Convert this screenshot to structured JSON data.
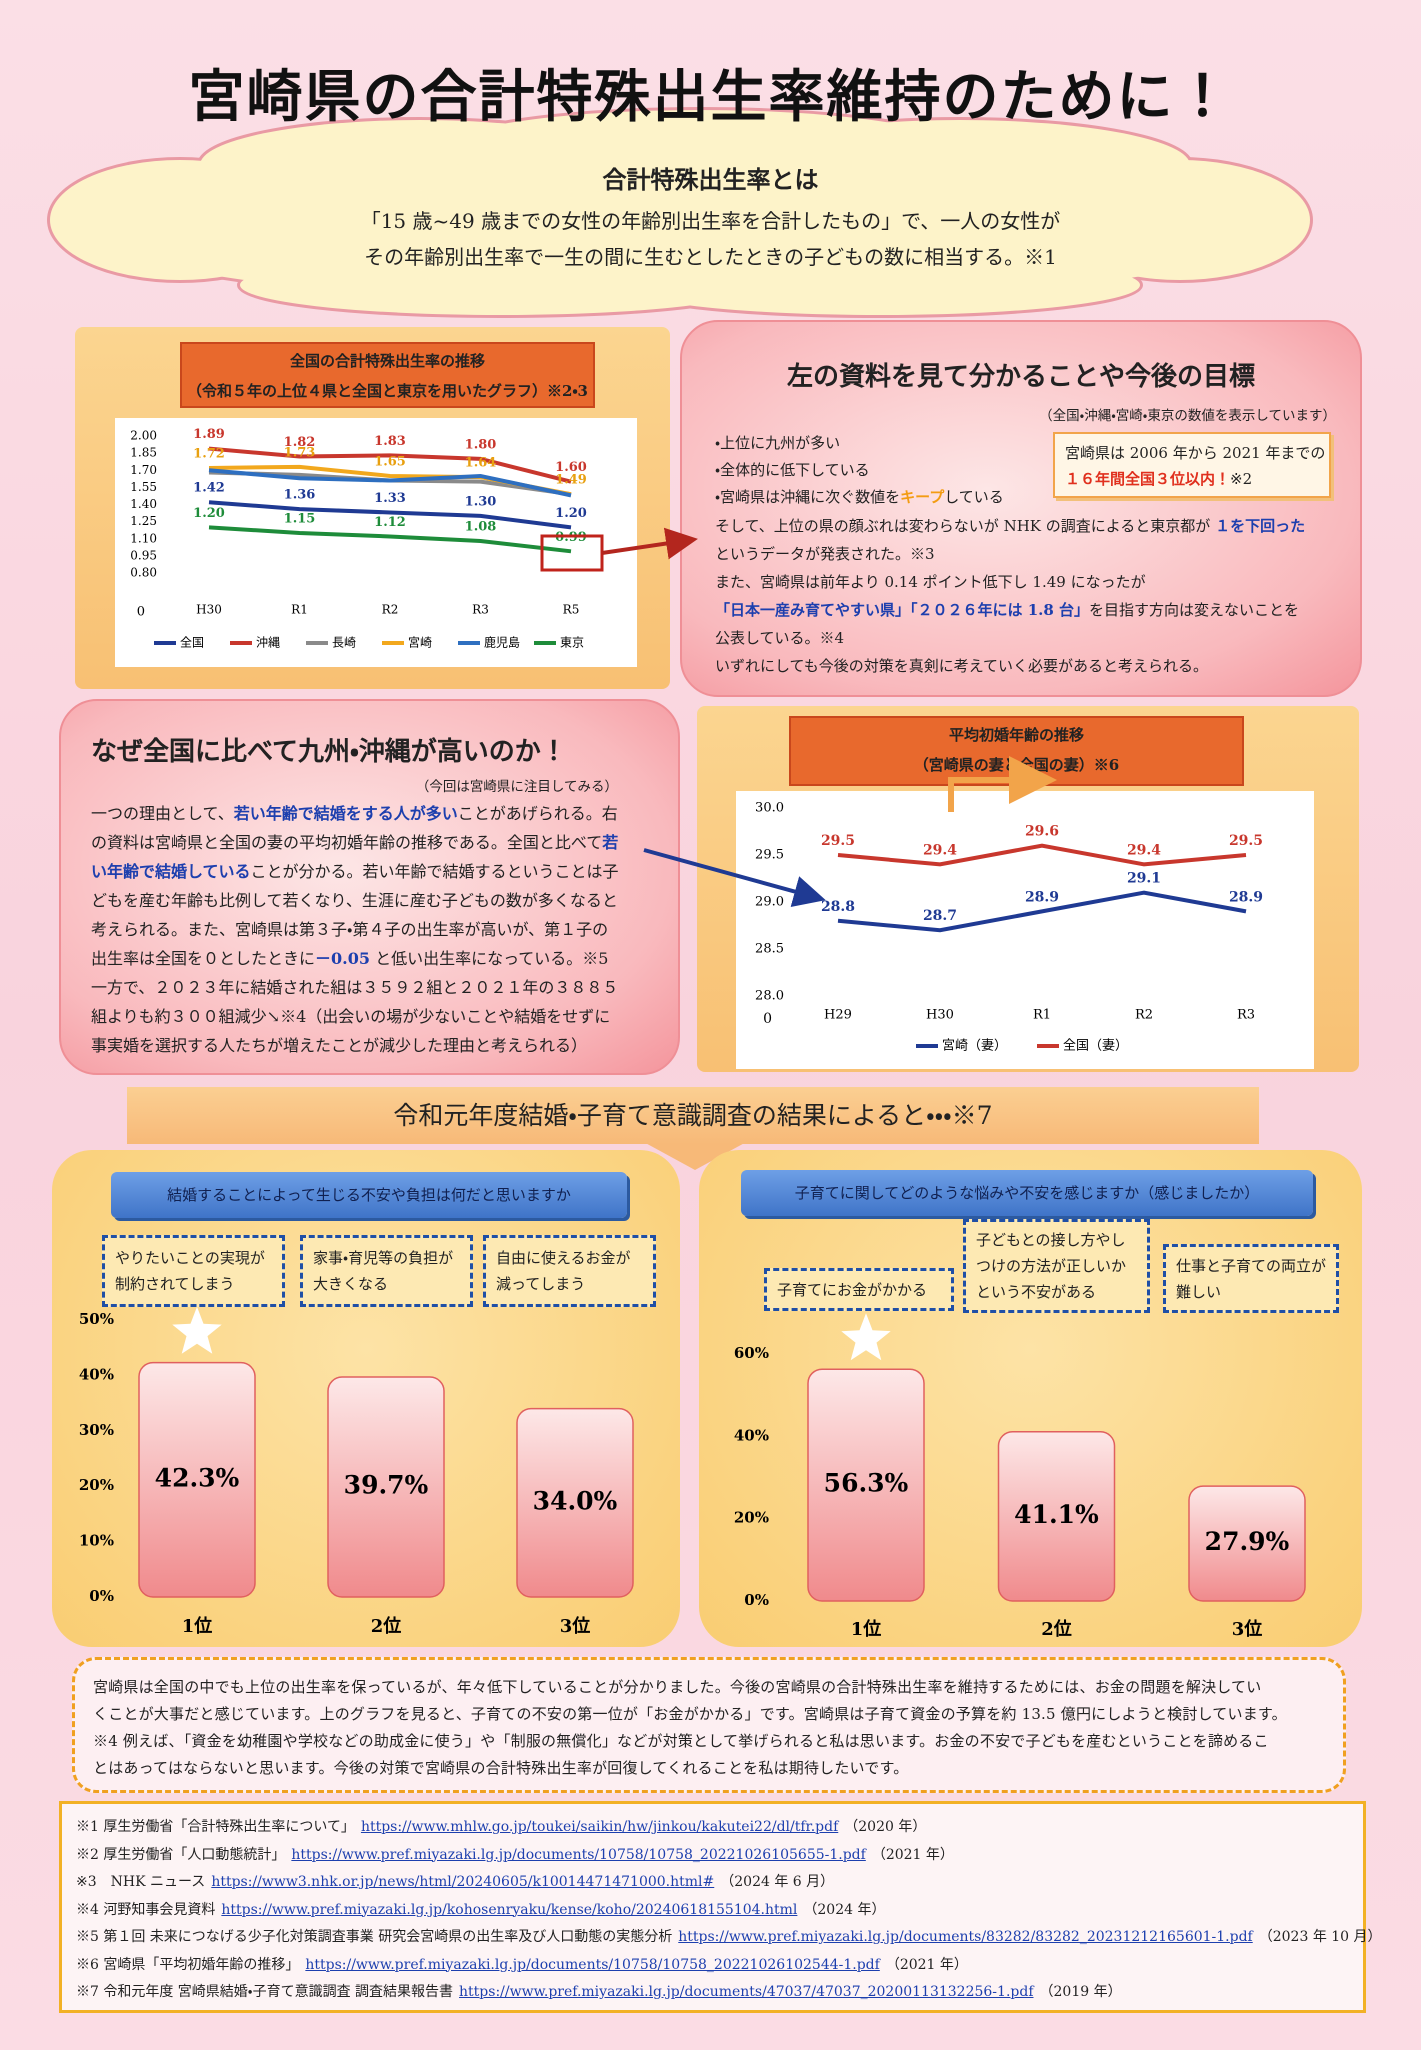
{
  "title": "宮崎県の合計特殊出生率維持のために！",
  "definition": {
    "heading": "合計特殊出生率とは",
    "lines": [
      "「15 歳~49 歳までの女性の年齢別出生率を合計したもの」で、一人の女性が",
      "その年齢別出生率で一生の間に生むとしたときの子どもの数に相当する。※1"
    ]
  },
  "findings": {
    "heading": "左の資料を見て分かることや今後の目標",
    "note": "（全国・沖縄・宮崎・東京の数値を表示しています）",
    "bullets": [
      [
        "・上位に九州が多い"
      ],
      [
        "・全体的に低下している"
      ],
      [
        "・宮崎県は沖縄に次ぐ数値を",
        {
          "text": "キープ",
          "color": "#f39c12"
        },
        "している"
      ]
    ],
    "callout": [
      [
        "宮崎県は 2006 年から 2021 年までの"
      ],
      [
        {
          "text": "１６年間全国３位以内！",
          "color": "#e0301e"
        },
        "※2"
      ]
    ],
    "lines": [
      [
        "そして、上位の県の顔ぶれは変わらないが NHK の調査によると東京都が ",
        {
          "text": "１を下回った",
          "color": "#1d3fae"
        }
      ],
      [
        "というデータが発表された。※3"
      ],
      [
        "また、宮崎県は前年より 0.14 ポイント低下し 1.49 になったが"
      ],
      [
        {
          "text": "「日本一産み育てやすい県」「２０２６年には 1.8 台」",
          "color": "#1d3fae"
        },
        "を目指す方向は変えないことを"
      ],
      [
        "公表している。※4"
      ],
      [
        "いずれにしても今後の対策を真剣に考えていく必要があると考えられる。"
      ]
    ]
  },
  "reason": {
    "heading": "なぜ全国に比べて九州・沖縄が高いのか！",
    "note": "（今回は宮崎県に注目してみる）",
    "lines": [
      [
        "一つの理由として、",
        {
          "text": "若い年齢で結婚をする人が多い",
          "color": "#1d3fae"
        },
        "ことがあげられる。右"
      ],
      [
        "の資料は宮崎県と全国の妻の平均初婚年齢の推移である。全国と比べて",
        {
          "text": "若",
          "color": "#1d3fae"
        }
      ],
      [
        {
          "text": "い年齢で結婚している",
          "color": "#1d3fae"
        },
        "ことが分かる。若い年齢で結婚するということは子"
      ],
      [
        "どもを産む年齢も比例して若くなり、生涯に産む子どもの数が多くなると"
      ],
      [
        "考えられる。また、宮崎県は第３子・第４子の出生率が高いが、第１子の"
      ],
      [
        "出生率は全国を０としたときに",
        {
          "text": "－0.05",
          "color": "#1d3fae"
        },
        " と低い出生率になっている。※5"
      ],
      [
        "一方で、２０２３年に結婚された組は３５９２組と２０２１年の３８８５"
      ],
      [
        "組よりも約３００組減少↘※4（出会いの場が少ないことや結婚をせずに"
      ],
      [
        "事実婚を選択する人たちが増えたことが減少した理由と考えられる）"
      ]
    ]
  },
  "survey_heading": "令和元年度結婚・子育て意識調査の結果によると・・・※7",
  "conclusion": [
    "宮崎県は全国の中でも上位の出生率を保っているが、年々低下していることが分かりました。今後の宮崎県の合計特殊出生率を維持するためには、お金の問題を解決してい",
    "くことが大事だと感じています。上のグラフを見ると、子育ての不安の第一位が「お金がかかる」です。宮崎県は子育て資金の予算を約 13.5 億円にしようと検討しています。",
    "※4 例えば、「資金を幼稚園や学校などの助成金に使う」や「制服の無償化」などが対策として挙げられると私は思います。お金の不安で子どもを産むということを諦めるこ",
    "とはあってはならないと思います。今後の対策で宮崎県の合計特殊出生率が回復してくれることを私は期待したいです。"
  ],
  "references": [
    {
      "label": "※1 厚生労働省「合計特殊出生率について」",
      "url": "https://www.mhlw.go.jp/toukei/saikin/hw/jinkou/kakutei22/dl/tfr.pdf",
      "year": "（2020 年）"
    },
    {
      "label": "※2 厚生労働省「人口動態統計」",
      "url": "https://www.pref.miyazaki.lg.jp/documents/10758/10758_20221026105655-1.pdf",
      "year": "（2021 年）"
    },
    {
      "label": "※3　NHK ニュース",
      "url": "https://www3.nhk.or.jp/news/html/20240605/k10014471471000.html#",
      "year": "（2024 年 6 月）"
    },
    {
      "label": "※4 河野知事会見資料",
      "url": "https://www.pref.miyazaki.lg.jp/kohosenryaku/kense/koho/20240618155104.html",
      "year": "（2024 年）"
    },
    {
      "label": "※5 第１回 未来につなげる少子化対策調査事業 研究会宮崎県の出生率及び人口動態の実態分析",
      "url": "https://www.pref.miyazaki.lg.jp/documents/83282/83282_20231212165601-1.pdf",
      "year": "（2023 年 10 月）"
    },
    {
      "label": "※6 宮崎県「平均初婚年齢の推移」",
      "url": "https://www.pref.miyazaki.lg.jp/documents/10758/10758_20221026102544-1.pdf",
      "year": "（2021 年）"
    },
    {
      "label": "※7 令和元年度 宮崎県結婚・子育て意識調査 調査結果報告書",
      "url": "https://www.pref.miyazaki.lg.jp/documents/47037/47037_20200113132256-1.pdf",
      "year": "（2019 年）"
    }
  ],
  "chart_data": [
    {
      "type": "line",
      "title": "全国の合計特殊出生率の推移",
      "subtitle": "（令和５年の上位４県と全国と東京を用いたグラフ）※2・3",
      "categories": [
        "H30",
        "R1",
        "R2",
        "R3",
        "R5"
      ],
      "ylim": [
        0.8,
        2.0
      ],
      "yticks": [
        {
          "value": 0.8,
          "label": "0.80"
        },
        {
          "value": 0.95,
          "label": "0.95"
        },
        {
          "value": 1.1,
          "label": "1.10"
        },
        {
          "value": 1.25,
          "label": "1.25"
        },
        {
          "value": 1.4,
          "label": "1.40"
        },
        {
          "value": 1.55,
          "label": "1.55"
        },
        {
          "value": 1.7,
          "label": "1.70"
        },
        {
          "value": 1.85,
          "label": "1.85"
        },
        {
          "value": 2.0,
          "label": "2.00"
        }
      ],
      "origin_label": "0",
      "legend": "bottom",
      "series": [
        {
          "name": "全国",
          "color": "#1f3a93",
          "values": [
            1.42,
            1.36,
            1.33,
            1.3,
            1.2
          ],
          "value_labels": [
            "1.42",
            "1.36",
            "1.33",
            "1.30",
            "1.20"
          ]
        },
        {
          "name": "沖縄",
          "color": "#c8372d",
          "values": [
            1.89,
            1.82,
            1.83,
            1.8,
            1.6
          ],
          "value_labels": [
            "1.89",
            "1.82",
            "1.83",
            "1.80",
            "1.60"
          ]
        },
        {
          "name": "長崎",
          "color": "#8a8a8a",
          "values": [
            1.68,
            1.66,
            1.61,
            1.6,
            1.49
          ]
        },
        {
          "name": "宮崎",
          "color": "#f2a81d",
          "values": [
            1.72,
            1.73,
            1.65,
            1.64,
            1.49
          ],
          "value_labels": [
            "1.72",
            "1.73",
            "1.65",
            "1.64",
            "1.49"
          ]
        },
        {
          "name": "鹿児島",
          "color": "#2e6fc0",
          "values": [
            1.7,
            1.63,
            1.61,
            1.65,
            1.48
          ]
        },
        {
          "name": "東京",
          "color": "#1e8c3a",
          "values": [
            1.2,
            1.15,
            1.12,
            1.08,
            0.99
          ],
          "value_labels": [
            "1.20",
            "1.15",
            "1.12",
            "1.08",
            "0.99"
          ]
        }
      ]
    },
    {
      "type": "line",
      "title": "平均初婚年齢の推移",
      "subtitle": "（宮崎県の妻と全国の妻）※6",
      "categories": [
        "H29",
        "H30",
        "R1",
        "R2",
        "R3"
      ],
      "ylim": [
        28.0,
        30.0
      ],
      "yticks": [
        {
          "value": 28.0,
          "label": "28.0"
        },
        28.5,
        {
          "value": 29.0,
          "label": "29.0"
        },
        29.5,
        {
          "value": 30.0,
          "label": "30.0"
        }
      ],
      "origin_label": "0",
      "legend": "bottom",
      "series": [
        {
          "name": "宮崎（妻）",
          "color": "#1f3a93",
          "values": [
            28.8,
            28.7,
            28.9,
            29.1,
            28.9
          ]
        },
        {
          "name": "全国（妻）",
          "color": "#c8372d",
          "values": [
            29.5,
            29.4,
            29.6,
            29.4,
            29.5
          ]
        }
      ]
    },
    {
      "type": "bar",
      "title": "結婚することによって生じる不安や負担は何だと思いますか",
      "categories": [
        "1位",
        "2位",
        "3位"
      ],
      "notes": [
        "やりたいことの実現が制約されてしまう",
        "家事・育児等の負担が大きくなる",
        "自由に使えるお金が減ってしまう"
      ],
      "values": [
        42.3,
        39.7,
        34.0
      ],
      "value_labels": [
        "42.3%",
        "39.7%",
        "34.0%"
      ],
      "ylim": [
        0,
        50
      ],
      "yticks": [
        {
          "value": 0,
          "label": "0%"
        },
        {
          "value": 10,
          "label": "10%"
        },
        {
          "value": 20,
          "label": "20%"
        },
        {
          "value": 30,
          "label": "30%"
        },
        {
          "value": 40,
          "label": "40%"
        },
        {
          "value": 50,
          "label": "50%"
        }
      ],
      "color": "#f08a8c"
    },
    {
      "type": "bar",
      "title": "子育てに関してどのような悩みや不安を感じますか（感じましたか）",
      "categories": [
        "1位",
        "2位",
        "3位"
      ],
      "notes": [
        "子育てにお金がかかる",
        "子どもとの接し方やしつけの方法が正しいかという不安がある",
        "仕事と子育ての両立が難しい"
      ],
      "values": [
        56.3,
        41.1,
        27.9
      ],
      "value_labels": [
        "56.3%",
        "41.1%",
        "27.9%"
      ],
      "ylim": [
        0,
        60
      ],
      "yticks": [
        {
          "value": 0,
          "label": "0%"
        },
        {
          "value": 20,
          "label": "20%"
        },
        {
          "value": 40,
          "label": "40%"
        },
        {
          "value": 60,
          "label": "60%"
        }
      ],
      "color": "#f08a8c"
    }
  ]
}
